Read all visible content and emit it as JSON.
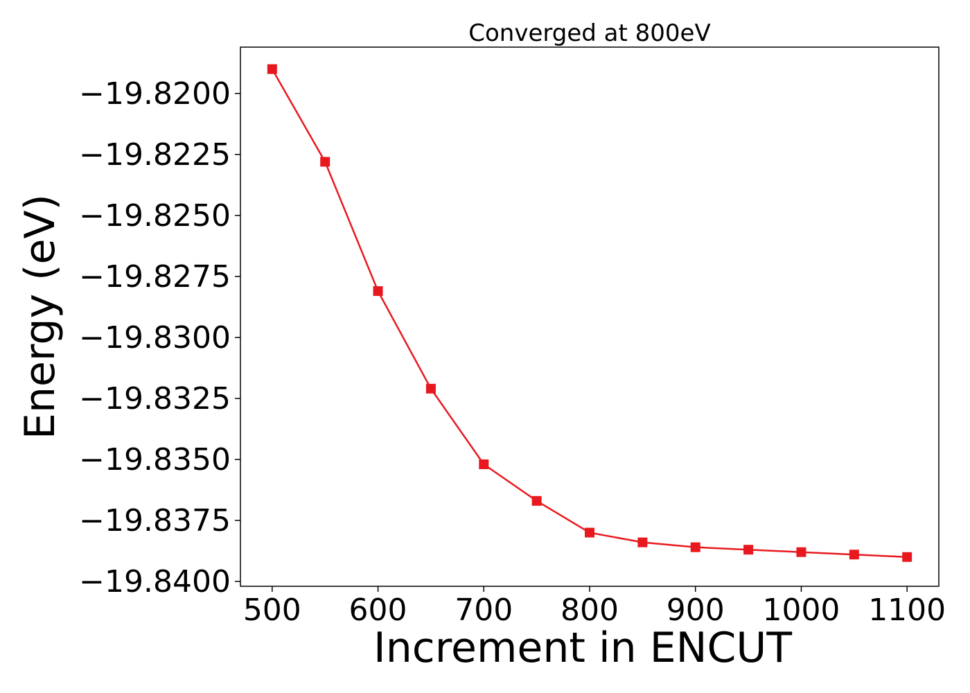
{
  "chart_data": {
    "type": "line",
    "title": "Converged at 800eV",
    "xlabel": "Increment in ENCUT",
    "ylabel": "Energy (eV)",
    "xlim": [
      470,
      1130
    ],
    "ylim": [
      -19.8402,
      -19.8181
    ],
    "xticks": [
      500,
      600,
      700,
      800,
      900,
      1000,
      1100
    ],
    "yticks": [
      -19.82,
      -19.8225,
      -19.825,
      -19.8275,
      -19.83,
      -19.8325,
      -19.835,
      -19.8375,
      -19.84
    ],
    "ytick_labels": [
      "−19.8200",
      "−19.8225",
      "−19.8250",
      "−19.8275",
      "−19.8300",
      "−19.8325",
      "−19.8350",
      "−19.8375",
      "−19.8400"
    ],
    "grid": false,
    "series": [
      {
        "color": "#e8191e",
        "marker": "square",
        "x": [
          500,
          550,
          600,
          650,
          700,
          750,
          800,
          850,
          900,
          950,
          1000,
          1050,
          1100
        ],
        "y": [
          -19.819,
          -19.8228,
          -19.8281,
          -19.8321,
          -19.8352,
          -19.8367,
          -19.838,
          -19.8384,
          -19.8386,
          -19.8387,
          -19.8388,
          -19.8389,
          -19.839
        ]
      }
    ]
  }
}
